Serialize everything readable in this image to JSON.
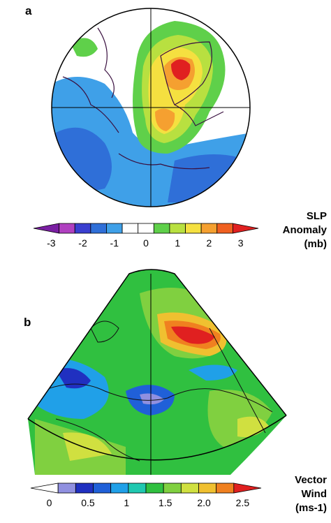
{
  "panel_a": {
    "label": "a",
    "colorbar": {
      "title_lines": [
        "SLP",
        "Anomaly",
        "(mb)"
      ],
      "ticks": [
        "-3",
        "-2",
        "-1",
        "0",
        "1",
        "2",
        "3"
      ],
      "colors": [
        "#7a1fa2",
        "#b040c0",
        "#3a3fd0",
        "#2f6fd8",
        "#3fa0e8",
        "#ffffff",
        "#ffffff",
        "#5fd04a",
        "#b8e040",
        "#f5e040",
        "#f5a030",
        "#f06020",
        "#e02020"
      ]
    }
  },
  "panel_b": {
    "label": "b",
    "colorbar": {
      "title_lines": [
        "Vector",
        "Wind",
        "(ms-1)"
      ],
      "ticks": [
        "0",
        "0.5",
        "1",
        "1.5",
        "2.0",
        "2.5"
      ],
      "colors": [
        "#ffffff",
        "#9090e0",
        "#2030c0",
        "#2060d8",
        "#20a0e8",
        "#20c8b0",
        "#30c040",
        "#80d040",
        "#d0e040",
        "#f0c030",
        "#f08020",
        "#e02020"
      ]
    }
  }
}
